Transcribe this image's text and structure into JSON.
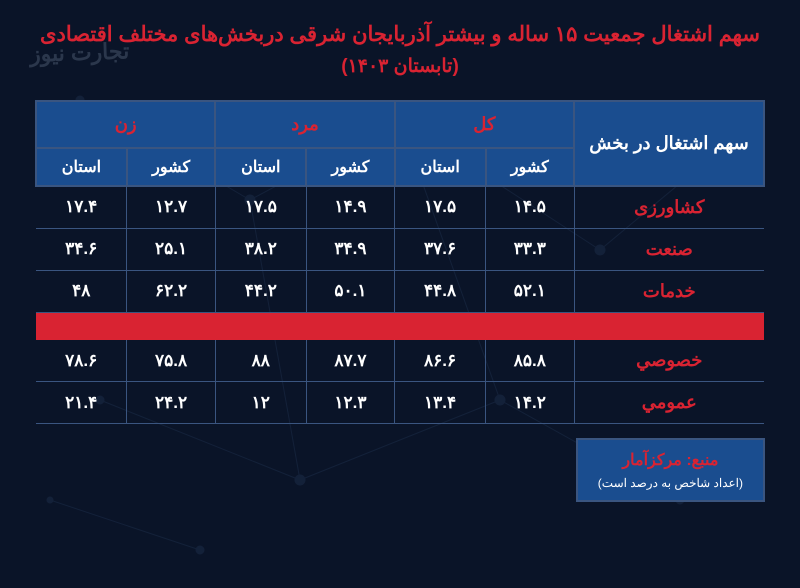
{
  "title": {
    "line1": "سهم اشتغال جمعیت ۱۵ ساله و بیشتر آذربایجان شرقی دربخش‌های مختلف اقتصادی",
    "line2": "(تابستان ۱۴۰۳)"
  },
  "table": {
    "row_header": "سهم اشتغال در بخش",
    "groups": {
      "total": "کل",
      "male": "مرد",
      "female": "زن"
    },
    "sub": {
      "country": "کشور",
      "province": "استان"
    },
    "rows": [
      {
        "label": "کشاورزی",
        "total_country": "۱۴.۵",
        "total_province": "۱۷.۵",
        "male_country": "۱۴.۹",
        "male_province": "۱۷.۵",
        "female_country": "۱۲.۷",
        "female_province": "۱۷.۴"
      },
      {
        "label": "صنعت",
        "total_country": "۳۳.۳",
        "total_province": "۳۷.۶",
        "male_country": "۳۴.۹",
        "male_province": "۳۸.۲",
        "female_country": "۲۵.۱",
        "female_province": "۳۴.۶"
      },
      {
        "label": "خدمات",
        "total_country": "۵۲.۱",
        "total_province": "۴۴.۸",
        "male_country": "۵۰.۱",
        "male_province": "۴۴.۲",
        "female_country": "۶۲.۲",
        "female_province": "۴۸"
      }
    ],
    "rows2": [
      {
        "label": "خصوصي",
        "total_country": "۸۵.۸",
        "total_province": "۸۶.۶",
        "male_country": "۸۷.۷",
        "male_province": "۸۸",
        "female_country": "۷۵.۸",
        "female_province": "۷۸.۶"
      },
      {
        "label": "عمومي",
        "total_country": "۱۴.۲",
        "total_province": "۱۳.۴",
        "male_country": "۱۲.۳",
        "male_province": "۱۲",
        "female_country": "۲۴.۲",
        "female_province": "۲۱.۴"
      }
    ]
  },
  "source": {
    "line1": "منبع: مرکزآمار",
    "line2": "(اعداد شاخص به درصد است)"
  },
  "watermark": "تجارت نیوز",
  "colors": {
    "bg": "#0a1428",
    "header_bg": "#1a4d8f",
    "border": "#3a5580",
    "accent": "#d92332",
    "text": "#ffffff"
  }
}
